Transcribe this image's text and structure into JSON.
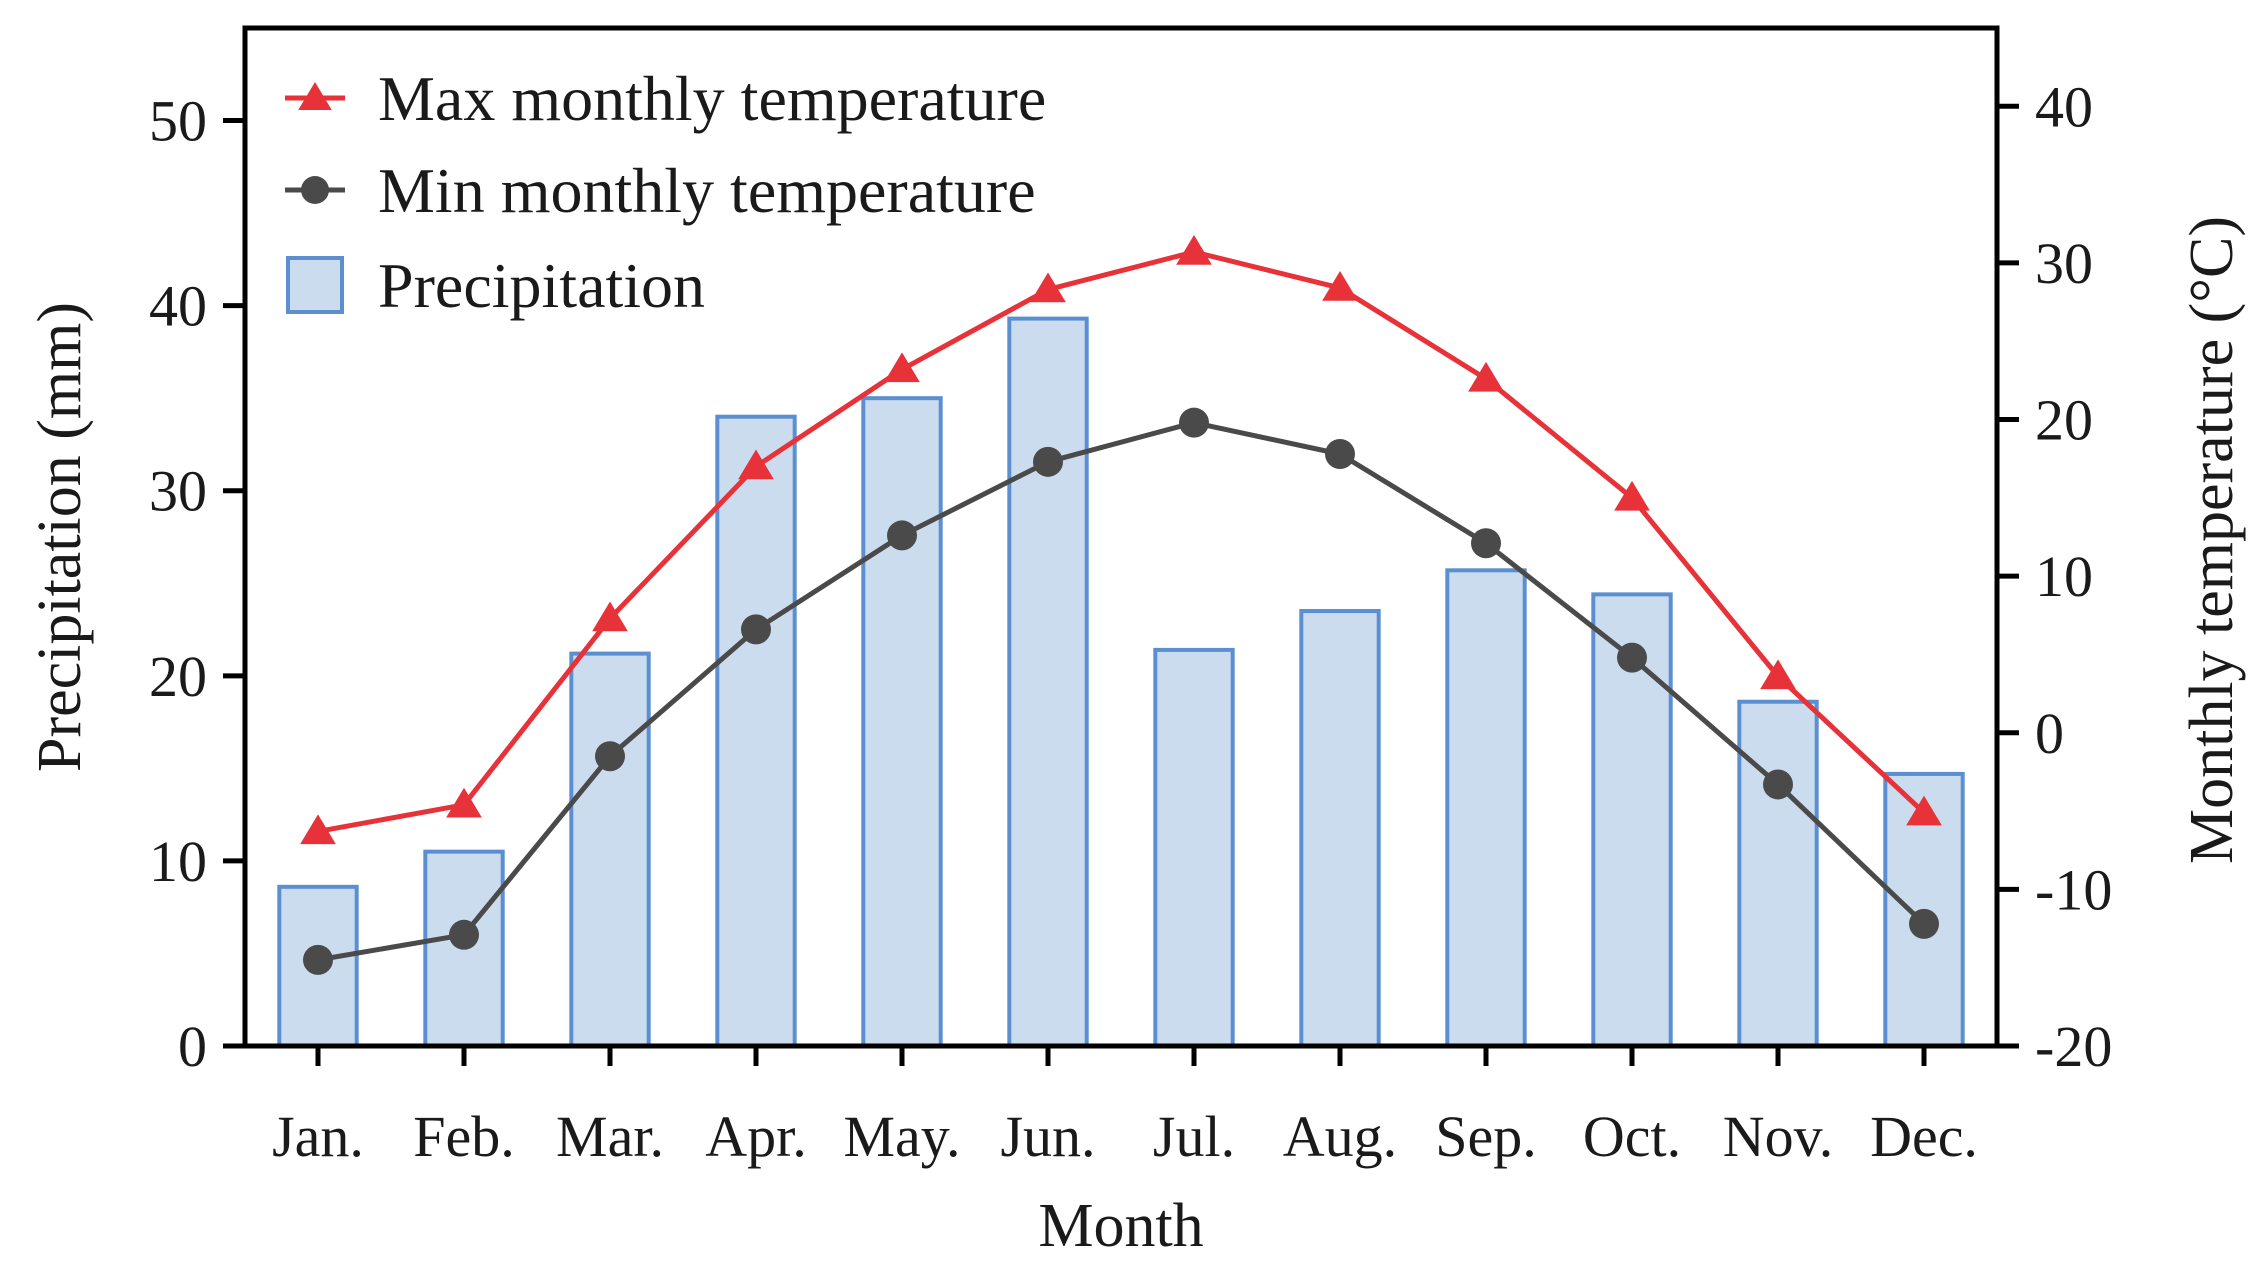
{
  "chart_data": {
    "type": "bar",
    "categories": [
      "Jan.",
      "Feb.",
      "Mar.",
      "Apr.",
      "May.",
      "Jun.",
      "Jul.",
      "Aug.",
      "Sep.",
      "Oct.",
      "Nov.",
      "Dec."
    ],
    "xlabel": "Month",
    "ylabel": "Precipitation (mm)",
    "y2label": "Monthly temperature (°C)",
    "ylim": [
      0,
      55
    ],
    "y2lim": [
      -20,
      45
    ],
    "yticks": [
      0,
      10,
      20,
      30,
      40,
      50
    ],
    "y2ticks": [
      -20,
      -10,
      0,
      10,
      20,
      30,
      40
    ],
    "grid": false,
    "legend_position": "top-left",
    "series": [
      {
        "name": "Max monthly temperature",
        "type": "line",
        "axis": "right",
        "marker": "triangle",
        "color": "#e8323a",
        "values": [
          -6.3,
          -4.6,
          7.3,
          17.0,
          23.2,
          28.3,
          30.7,
          28.4,
          22.6,
          15.0,
          3.6,
          -5.1
        ]
      },
      {
        "name": "Min monthly temperature",
        "type": "line",
        "axis": "right",
        "marker": "circle",
        "color": "#4a4a4a",
        "values": [
          -14.5,
          -12.9,
          -1.5,
          6.6,
          12.6,
          17.3,
          19.8,
          17.8,
          12.1,
          4.8,
          -3.3,
          -12.2
        ]
      },
      {
        "name": "Precipitation",
        "type": "bar",
        "axis": "left",
        "color": "#ccdcef",
        "edge_color": "#5b8fd0",
        "values": [
          8.6,
          10.5,
          21.2,
          34.0,
          35.0,
          39.3,
          21.4,
          23.5,
          25.7,
          24.4,
          18.6,
          14.7
        ]
      }
    ]
  }
}
